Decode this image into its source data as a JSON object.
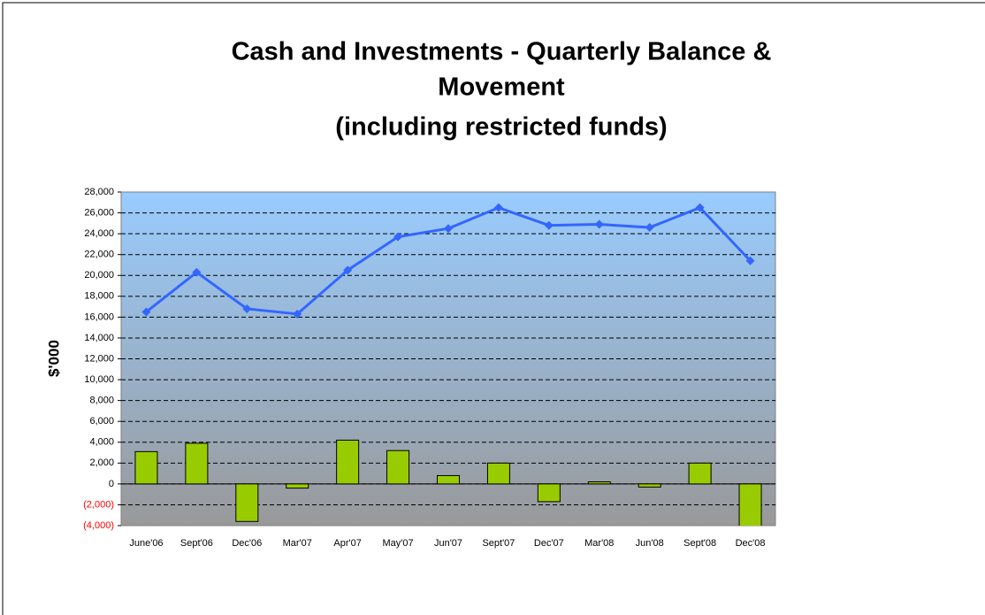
{
  "chart_data": {
    "type": "bar_line",
    "title": [
      "Cash and Investments - Quarterly  Balance &",
      "Movement",
      "(including restricted funds)"
    ],
    "y_axis_label": "$'000",
    "categories": [
      "June'06",
      "Sept'06",
      "Dec'06",
      "Mar'07",
      "Apr'07",
      "May'07",
      "Jun'07",
      "Sept'07",
      "Dec'07",
      "Mar'08",
      "Jun'08",
      "Sept'08",
      "Dec'08"
    ],
    "series": [
      {
        "type": "bar",
        "color": "#99cc00",
        "values": [
          3100,
          3900,
          -3600,
          -400,
          4200,
          3200,
          800,
          2000,
          -1700,
          200,
          -300,
          2000,
          -4500
        ]
      },
      {
        "type": "line",
        "color": "#3366ff",
        "values": [
          16500,
          20300,
          16800,
          16300,
          20500,
          23700,
          24500,
          26500,
          24800,
          24900,
          24600,
          26500,
          21400
        ]
      }
    ],
    "ylim": [
      -4000,
      28000
    ],
    "yticks": [
      {
        "value": -4000,
        "label": "(4,000)"
      },
      {
        "value": -2000,
        "label": "(2,000)"
      },
      0,
      {
        "value": 2000,
        "label": "2,000"
      },
      {
        "value": 4000,
        "label": "4,000"
      },
      {
        "value": 6000,
        "label": "6,000"
      },
      {
        "value": 8000,
        "label": "8,000"
      },
      {
        "value": 10000,
        "label": "10,000"
      },
      {
        "value": 12000,
        "label": "12,000"
      },
      {
        "value": 14000,
        "label": "14,000"
      },
      {
        "value": 16000,
        "label": "16,000"
      },
      {
        "value": 18000,
        "label": "18,000"
      },
      {
        "value": 20000,
        "label": "20,000"
      },
      {
        "value": 22000,
        "label": "22,000"
      },
      {
        "value": 24000,
        "label": "24,000"
      },
      {
        "value": 26000,
        "label": "26,000"
      },
      {
        "value": 28000,
        "label": "28,000"
      }
    ],
    "grid": true,
    "negative_tick_color": "#ff0000"
  }
}
